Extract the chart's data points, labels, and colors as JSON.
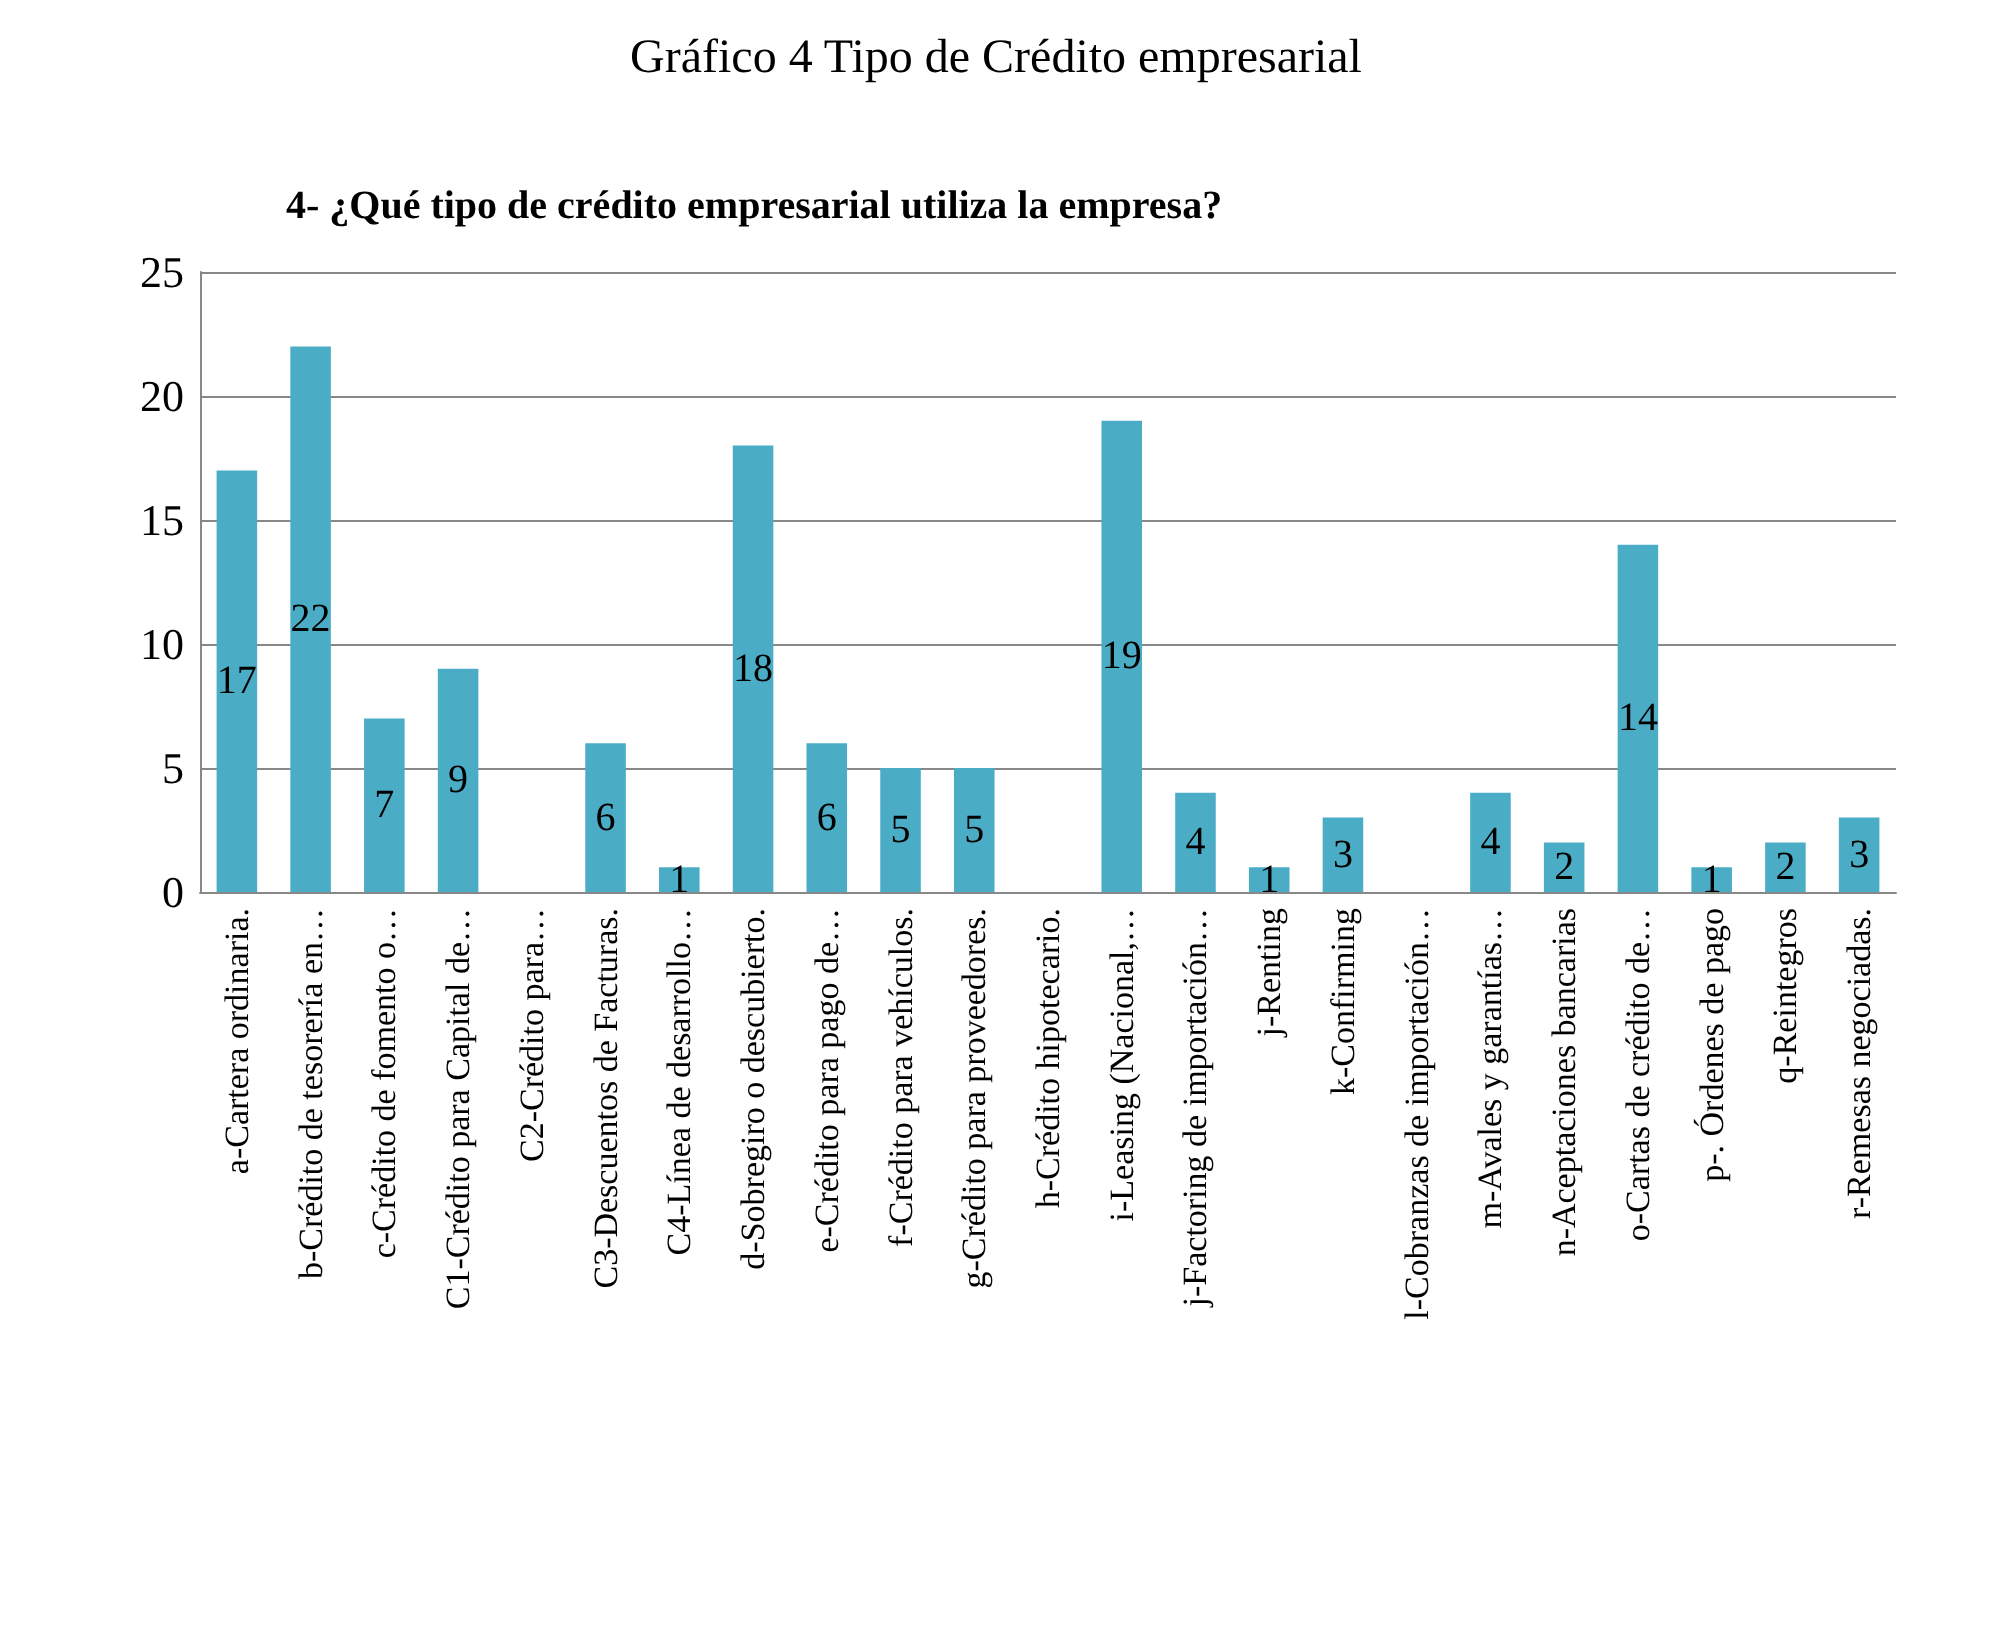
{
  "chart_data": {
    "type": "bar",
    "title": "Gráfico 4 Tipo de Crédito empresarial",
    "subtitle": "4- ¿Qué tipo de crédito empresarial utiliza la empresa?",
    "categories": [
      "a-Cartera ordinaria.",
      "b-Crédito de tesorería en…",
      "c-Crédito de fomento o…",
      "C1-Crédito para Capital de…",
      "C2-Crédito para…",
      "C3-Descuentos de Facturas.",
      "C4-Línea de desarrollo…",
      "d-Sobregiro o descubierto.",
      "e-Crédito para pago de…",
      "f-Crédito para vehículos.",
      "g-Crédito para proveedores.",
      "h-Crédito hipotecario.",
      "i-Leasing (Nacional,…",
      "j-Factoring de importación…",
      "j-Renting",
      "k-Confirming",
      "l-Cobranzas de importación…",
      "m-Avales y garantías…",
      "n-Aceptaciones bancarias",
      "o-Cartas de crédito de…",
      "p-. Órdenes de pago",
      "q-Reintegros",
      "r-Remesas negociadas."
    ],
    "values": [
      17,
      22,
      7,
      9,
      null,
      6,
      1,
      18,
      6,
      5,
      5,
      null,
      19,
      4,
      1,
      3,
      null,
      4,
      2,
      14,
      1,
      2,
      3
    ],
    "value_labels": [
      "17",
      "22",
      "7",
      "9",
      null,
      "6",
      "1",
      "18",
      "6",
      "5",
      "5",
      null,
      "19",
      "4",
      "1",
      "3",
      null,
      "4",
      "2",
      "14",
      "1",
      "2",
      "3"
    ],
    "color": "#4bacc6",
    "ylim": [
      0,
      25
    ],
    "yticks": [
      0,
      5,
      10,
      15,
      20,
      25
    ],
    "grid": "y",
    "legend": false
  }
}
